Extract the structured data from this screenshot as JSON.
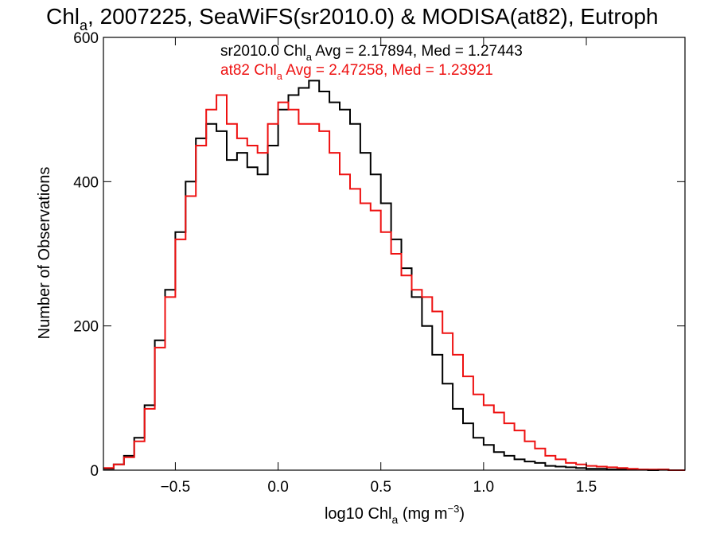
{
  "chart_data": {
    "type": "line",
    "step": true,
    "title": {
      "parts": [
        "Chl",
        "a",
        ", 2007225, SeaWiFS(sr2010.0) & MODISA(at82), Eutroph"
      ]
    },
    "xlabel": {
      "pre": "log10 Chl",
      "sub": "a",
      "mid": " (mg m",
      "sup": "−3",
      "post": ")"
    },
    "ylabel": "Number of Observations",
    "xlim": [
      -0.85,
      1.98
    ],
    "ylim": [
      0,
      600
    ],
    "x_ticks": [
      {
        "value": -0.5,
        "label": "−0.5"
      },
      {
        "value": 0.0,
        "label": "0.0"
      },
      {
        "value": 0.5,
        "label": "0.5"
      },
      {
        "value": 1.0,
        "label": "1.0"
      },
      {
        "value": 1.5,
        "label": "1.5"
      }
    ],
    "y_ticks": [
      {
        "value": 0,
        "label": "0"
      },
      {
        "value": 200,
        "label": "200"
      },
      {
        "value": 400,
        "label": "400"
      },
      {
        "value": 600,
        "label": "600"
      }
    ],
    "annotations": [
      {
        "color": "#000000",
        "pre": "sr2010.0 Chl",
        "sub": "a",
        "post": " Avg = 2.17894, Med = 1.27443"
      },
      {
        "color": "#ee1111",
        "pre": "at82 Chl",
        "sub": "a",
        "post": " Avg = 2.47258, Med = 1.23921"
      }
    ],
    "series": [
      {
        "name": "sr2010.0",
        "color": "#000000",
        "x": [
          -0.85,
          -0.8,
          -0.75,
          -0.7,
          -0.65,
          -0.6,
          -0.55,
          -0.5,
          -0.45,
          -0.4,
          -0.35,
          -0.3,
          -0.25,
          -0.2,
          -0.15,
          -0.1,
          -0.05,
          0.0,
          0.05,
          0.1,
          0.15,
          0.2,
          0.25,
          0.3,
          0.35,
          0.4,
          0.45,
          0.5,
          0.55,
          0.6,
          0.65,
          0.7,
          0.75,
          0.8,
          0.85,
          0.9,
          0.95,
          1.0,
          1.05,
          1.1,
          1.15,
          1.2,
          1.25,
          1.3,
          1.35,
          1.4,
          1.45,
          1.5,
          1.55,
          1.6,
          1.65,
          1.7,
          1.75,
          1.8,
          1.85,
          1.9,
          1.95
        ],
        "y": [
          2,
          8,
          20,
          45,
          90,
          180,
          250,
          330,
          400,
          460,
          480,
          470,
          430,
          440,
          420,
          410,
          450,
          500,
          520,
          530,
          540,
          525,
          510,
          500,
          480,
          440,
          410,
          370,
          320,
          280,
          240,
          200,
          160,
          120,
          85,
          65,
          45,
          35,
          25,
          20,
          15,
          12,
          10,
          6,
          5,
          4,
          3,
          2,
          2,
          1,
          1,
          1,
          1,
          0,
          1,
          0,
          0
        ]
      },
      {
        "name": "at82",
        "color": "#ee1111",
        "x": [
          -0.85,
          -0.8,
          -0.75,
          -0.7,
          -0.65,
          -0.6,
          -0.55,
          -0.5,
          -0.45,
          -0.4,
          -0.35,
          -0.3,
          -0.25,
          -0.2,
          -0.15,
          -0.1,
          -0.05,
          0.0,
          0.05,
          0.1,
          0.15,
          0.2,
          0.25,
          0.3,
          0.35,
          0.4,
          0.45,
          0.5,
          0.55,
          0.6,
          0.65,
          0.7,
          0.75,
          0.8,
          0.85,
          0.9,
          0.95,
          1.0,
          1.05,
          1.1,
          1.15,
          1.2,
          1.25,
          1.3,
          1.35,
          1.4,
          1.45,
          1.5,
          1.55,
          1.6,
          1.65,
          1.7,
          1.75,
          1.8,
          1.85,
          1.9,
          1.95
        ],
        "y": [
          3,
          8,
          18,
          40,
          85,
          170,
          240,
          320,
          380,
          450,
          500,
          520,
          480,
          460,
          450,
          440,
          480,
          510,
          500,
          480,
          480,
          470,
          440,
          410,
          390,
          370,
          360,
          330,
          300,
          270,
          250,
          240,
          220,
          190,
          160,
          130,
          105,
          90,
          80,
          65,
          55,
          40,
          30,
          20,
          15,
          10,
          8,
          6,
          5,
          4,
          3,
          2,
          1,
          1,
          1,
          0,
          0
        ]
      }
    ]
  }
}
